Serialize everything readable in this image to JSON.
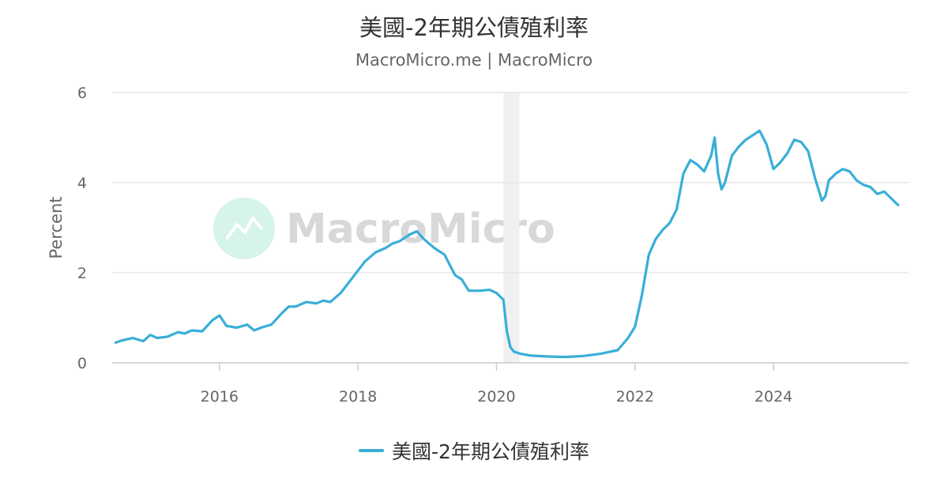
{
  "title": "美國-2年期公債殖利率",
  "subtitle": "MacroMicro.me | MacroMicro",
  "watermark": "MacroMicro",
  "colors": {
    "series": "#3aaed8",
    "band": "#f0f0f0",
    "grid": "#e6e6e6",
    "watermark_logo": "#d6f3ec"
  },
  "chart_data": {
    "type": "line",
    "title": "美國-2年期公債殖利率",
    "ylabel": "Percent",
    "xlabel": "",
    "xlim": [
      2014.45,
      2025.95
    ],
    "ylim": [
      0,
      6
    ],
    "yticks": [
      "0",
      "2",
      "4",
      "6"
    ],
    "xticks": [
      "2016",
      "2018",
      "2020",
      "2022",
      "2024"
    ],
    "xtick_values": [
      2016,
      2018,
      2020,
      2022,
      2024
    ],
    "grid": true,
    "legend_position": "bottom-center",
    "shaded_band": [
      2020.1,
      2020.33
    ],
    "series": [
      {
        "name": "美國-2年期公債殖利率",
        "x": [
          2014.5,
          2014.6,
          2014.75,
          2014.9,
          2015.0,
          2015.1,
          2015.25,
          2015.4,
          2015.5,
          2015.6,
          2015.75,
          2015.9,
          2016.0,
          2016.1,
          2016.25,
          2016.4,
          2016.5,
          2016.6,
          2016.75,
          2016.9,
          2017.0,
          2017.1,
          2017.25,
          2017.4,
          2017.5,
          2017.6,
          2017.75,
          2017.9,
          2018.0,
          2018.1,
          2018.25,
          2018.4,
          2018.5,
          2018.6,
          2018.75,
          2018.85,
          2018.95,
          2019.1,
          2019.25,
          2019.4,
          2019.5,
          2019.6,
          2019.75,
          2019.9,
          2020.0,
          2020.1,
          2020.15,
          2020.2,
          2020.25,
          2020.35,
          2020.5,
          2020.75,
          2021.0,
          2021.25,
          2021.5,
          2021.75,
          2021.9,
          2022.0,
          2022.1,
          2022.2,
          2022.3,
          2022.4,
          2022.5,
          2022.6,
          2022.7,
          2022.8,
          2022.9,
          2023.0,
          2023.1,
          2023.15,
          2023.2,
          2023.25,
          2023.3,
          2023.4,
          2023.5,
          2023.6,
          2023.7,
          2023.8,
          2023.9,
          2024.0,
          2024.1,
          2024.2,
          2024.3,
          2024.4,
          2024.5,
          2024.6,
          2024.7,
          2024.75,
          2024.8,
          2024.9,
          2025.0,
          2025.1,
          2025.2,
          2025.3,
          2025.4,
          2025.5,
          2025.6,
          2025.7,
          2025.8
        ],
        "values": [
          0.45,
          0.5,
          0.55,
          0.48,
          0.62,
          0.55,
          0.58,
          0.68,
          0.65,
          0.72,
          0.7,
          0.95,
          1.05,
          0.82,
          0.78,
          0.85,
          0.72,
          0.78,
          0.85,
          1.1,
          1.25,
          1.25,
          1.35,
          1.32,
          1.38,
          1.35,
          1.55,
          1.85,
          2.05,
          2.25,
          2.45,
          2.55,
          2.65,
          2.7,
          2.85,
          2.92,
          2.75,
          2.55,
          2.4,
          1.95,
          1.85,
          1.6,
          1.6,
          1.62,
          1.55,
          1.4,
          0.7,
          0.35,
          0.25,
          0.2,
          0.16,
          0.14,
          0.13,
          0.15,
          0.2,
          0.28,
          0.55,
          0.8,
          1.5,
          2.4,
          2.75,
          2.95,
          3.1,
          3.4,
          4.2,
          4.5,
          4.4,
          4.25,
          4.6,
          5.0,
          4.2,
          3.85,
          4.0,
          4.6,
          4.8,
          4.95,
          5.05,
          5.15,
          4.85,
          4.3,
          4.45,
          4.65,
          4.95,
          4.9,
          4.7,
          4.1,
          3.6,
          3.7,
          4.05,
          4.2,
          4.3,
          4.25,
          4.05,
          3.95,
          3.9,
          3.75,
          3.8,
          3.65,
          3.5
        ]
      }
    ]
  }
}
